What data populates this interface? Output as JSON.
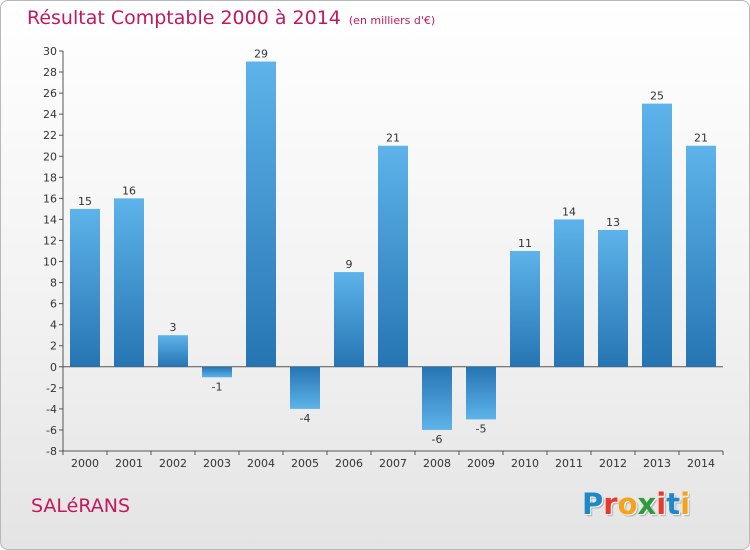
{
  "header": {
    "title": "Résultat Comptable 2000 à 2014",
    "subtitle": "(en milliers d'€)"
  },
  "footer": {
    "town": "SALéRANS",
    "brand": {
      "letters": [
        "P",
        "r",
        "o",
        "x",
        "i",
        "t",
        "i"
      ],
      "colors": [
        "#1e88c8",
        "#e8392b",
        "#f5a31a",
        "#2e9b3e",
        "#e8392b",
        "#1e88c8",
        "#f5a31a"
      ]
    }
  },
  "chart_data": {
    "type": "bar",
    "title": "Résultat Comptable 2000 à 2014",
    "subtitle": "(en milliers d'€)",
    "xlabel": "",
    "ylabel": "",
    "categories": [
      "2000",
      "2001",
      "2002",
      "2003",
      "2004",
      "2005",
      "2006",
      "2007",
      "2008",
      "2009",
      "2010",
      "2011",
      "2012",
      "2013",
      "2014"
    ],
    "values": [
      15,
      16,
      3,
      -1,
      29,
      -4,
      9,
      21,
      -6,
      -5,
      11,
      14,
      13,
      25,
      21
    ],
    "ylim": [
      -8,
      30
    ],
    "yticks": [
      -8,
      -6,
      -4,
      -2,
      0,
      2,
      4,
      6,
      8,
      10,
      12,
      14,
      16,
      18,
      20,
      22,
      24,
      26,
      28,
      30
    ],
    "grid": false,
    "bar_color": "#3a93d2"
  }
}
